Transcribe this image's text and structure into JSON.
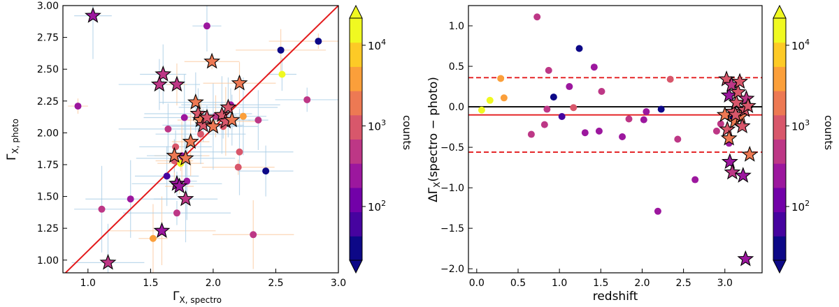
{
  "chart_data": [
    {
      "type": "scatter",
      "title": "",
      "xlabel_main": "Γ",
      "xlabel_sub": "X, spectro",
      "ylabel_main": "Γ",
      "ylabel_sub": "X, photo",
      "xlim": [
        0.8,
        3.0
      ],
      "ylim": [
        0.9,
        3.0
      ],
      "xticks": [
        1.0,
        1.5,
        2.0,
        2.5,
        3.0
      ],
      "xtick_labels": [
        "1.0",
        "1.5",
        "2.0",
        "2.5",
        "3.0"
      ],
      "yticks": [
        1.0,
        1.25,
        1.5,
        1.75,
        2.0,
        2.25,
        2.5,
        2.75,
        3.0
      ],
      "ytick_labels": [
        "1.00",
        "1.25",
        "1.50",
        "1.75",
        "2.00",
        "2.25",
        "2.50",
        "2.75",
        "3.00"
      ],
      "one_to_one_line": {
        "from": [
          0.8,
          0.88
        ],
        "to": [
          3.0,
          3.0
        ],
        "color": "#e31a1c"
      },
      "errorbars_note": "light blue and light orange error bars on each point",
      "circles": [
        {
          "x": 0.92,
          "y": 2.21,
          "c": 0.4
        },
        {
          "x": 1.11,
          "y": 1.4,
          "c": 0.42
        },
        {
          "x": 1.34,
          "y": 1.48,
          "c": 0.4
        },
        {
          "x": 1.52,
          "y": 1.17,
          "c": 0.75
        },
        {
          "x": 1.63,
          "y": 1.66,
          "c": 0.12
        },
        {
          "x": 1.64,
          "y": 2.03,
          "c": 0.48
        },
        {
          "x": 1.69,
          "y": 1.78,
          "c": 0.58
        },
        {
          "x": 1.7,
          "y": 1.89,
          "c": 0.55
        },
        {
          "x": 1.71,
          "y": 1.37,
          "c": 0.45
        },
        {
          "x": 1.74,
          "y": 1.76,
          "c": 1.0
        },
        {
          "x": 1.77,
          "y": 2.12,
          "c": 0.4
        },
        {
          "x": 1.79,
          "y": 1.62,
          "c": 0.4
        },
        {
          "x": 1.75,
          "y": 1.82,
          "c": 0.38
        },
        {
          "x": 1.9,
          "y": 1.99,
          "c": 0.55
        },
        {
          "x": 1.95,
          "y": 2.84,
          "c": 0.35
        },
        {
          "x": 2.02,
          "y": 2.13,
          "c": 0.5
        },
        {
          "x": 2.14,
          "y": 2.22,
          "c": 0.38
        },
        {
          "x": 2.08,
          "y": 2.05,
          "c": 0.55
        },
        {
          "x": 2.2,
          "y": 1.73,
          "c": 0.52
        },
        {
          "x": 2.21,
          "y": 1.85,
          "c": 0.6
        },
        {
          "x": 2.24,
          "y": 2.13,
          "c": 0.78
        },
        {
          "x": 2.32,
          "y": 1.2,
          "c": 0.48
        },
        {
          "x": 2.36,
          "y": 2.1,
          "c": 0.42
        },
        {
          "x": 2.42,
          "y": 1.7,
          "c": 0.1
        },
        {
          "x": 2.54,
          "y": 2.65,
          "c": 0.08
        },
        {
          "x": 2.55,
          "y": 2.46,
          "c": 0.98
        },
        {
          "x": 2.75,
          "y": 2.26,
          "c": 0.45
        },
        {
          "x": 2.84,
          "y": 2.72,
          "c": 0.1
        }
      ],
      "stars": [
        {
          "x": 1.04,
          "y": 2.92,
          "c": 0.4
        },
        {
          "x": 1.16,
          "y": 0.98,
          "c": 0.48
        },
        {
          "x": 1.59,
          "y": 1.23,
          "c": 0.38
        },
        {
          "x": 1.6,
          "y": 2.46,
          "c": 0.48
        },
        {
          "x": 1.57,
          "y": 2.38,
          "c": 0.48
        },
        {
          "x": 1.71,
          "y": 2.38,
          "c": 0.48
        },
        {
          "x": 1.69,
          "y": 1.82,
          "c": 0.62
        },
        {
          "x": 1.71,
          "y": 1.6,
          "c": 0.38
        },
        {
          "x": 1.73,
          "y": 1.58,
          "c": 0.4
        },
        {
          "x": 1.78,
          "y": 1.48,
          "c": 0.45
        },
        {
          "x": 1.78,
          "y": 1.8,
          "c": 0.65
        },
        {
          "x": 1.82,
          "y": 1.93,
          "c": 0.65
        },
        {
          "x": 1.86,
          "y": 2.24,
          "c": 0.7
        },
        {
          "x": 1.88,
          "y": 2.15,
          "c": 0.6
        },
        {
          "x": 1.9,
          "y": 2.1,
          "c": 0.62
        },
        {
          "x": 1.92,
          "y": 2.06,
          "c": 0.55
        },
        {
          "x": 1.95,
          "y": 2.12,
          "c": 0.6
        },
        {
          "x": 1.99,
          "y": 2.56,
          "c": 0.65
        },
        {
          "x": 2.0,
          "y": 2.05,
          "c": 0.62
        },
        {
          "x": 2.07,
          "y": 2.14,
          "c": 0.58
        },
        {
          "x": 2.1,
          "y": 2.09,
          "c": 0.55
        },
        {
          "x": 2.12,
          "y": 2.2,
          "c": 0.6
        },
        {
          "x": 2.15,
          "y": 2.1,
          "c": 0.62
        },
        {
          "x": 2.21,
          "y": 2.39,
          "c": 0.65
        }
      ],
      "colorbar": {
        "label": "counts",
        "ticks": [
          {
            "main": "10",
            "exp": "2",
            "frac": 0.222
          },
          {
            "main": "10",
            "exp": "3",
            "frac": 0.555
          },
          {
            "main": "10",
            "exp": "4",
            "frac": 0.888
          }
        ]
      }
    },
    {
      "type": "scatter",
      "title": "",
      "xlabel": "redshift",
      "ylabel_main": "ΔΓ",
      "ylabel_sub": "X",
      "ylabel_rest": "(spectro − photo)",
      "xlim": [
        -0.1,
        3.45
      ],
      "ylim": [
        -2.05,
        1.25
      ],
      "xticks": [
        0.0,
        0.5,
        1.0,
        1.5,
        2.0,
        2.5,
        3.0
      ],
      "xtick_labels": [
        "0.0",
        "0.5",
        "1.0",
        "1.5",
        "2.0",
        "2.5",
        "3.0"
      ],
      "yticks": [
        -2.0,
        -1.5,
        -1.0,
        -0.5,
        0.0,
        0.5,
        1.0
      ],
      "ytick_labels": [
        "−2.0",
        "−1.5",
        "−1.0",
        "−0.5",
        "0.0",
        "0.5",
        "1.0"
      ],
      "hlines": [
        {
          "y": 0.0,
          "color": "#000000",
          "style": "solid"
        },
        {
          "y": -0.1,
          "color": "#e31a1c",
          "style": "solid"
        },
        {
          "y": 0.36,
          "color": "#e31a1c",
          "style": "dashed"
        },
        {
          "y": -0.56,
          "color": "#e31a1c",
          "style": "dashed"
        }
      ],
      "circles": [
        {
          "x": 0.06,
          "y": -0.04,
          "c": 0.98
        },
        {
          "x": 0.16,
          "y": 0.08,
          "c": 1.0
        },
        {
          "x": 0.29,
          "y": 0.35,
          "c": 0.78
        },
        {
          "x": 0.33,
          "y": 0.11,
          "c": 0.8
        },
        {
          "x": 0.66,
          "y": -0.34,
          "c": 0.45
        },
        {
          "x": 0.73,
          "y": 1.11,
          "c": 0.45
        },
        {
          "x": 0.82,
          "y": -0.22,
          "c": 0.48
        },
        {
          "x": 0.85,
          "y": -0.03,
          "c": 0.45
        },
        {
          "x": 0.87,
          "y": 0.45,
          "c": 0.5
        },
        {
          "x": 0.93,
          "y": 0.12,
          "c": 0.1
        },
        {
          "x": 1.03,
          "y": -0.12,
          "c": 0.12
        },
        {
          "x": 1.12,
          "y": 0.25,
          "c": 0.4
        },
        {
          "x": 1.17,
          "y": -0.01,
          "c": 0.55
        },
        {
          "x": 1.24,
          "y": 0.72,
          "c": 0.1
        },
        {
          "x": 1.31,
          "y": -0.32,
          "c": 0.4
        },
        {
          "x": 1.42,
          "y": 0.49,
          "c": 0.4
        },
        {
          "x": 1.48,
          "y": -0.3,
          "c": 0.4
        },
        {
          "x": 1.51,
          "y": 0.19,
          "c": 0.48
        },
        {
          "x": 1.76,
          "y": -0.37,
          "c": 0.4
        },
        {
          "x": 1.84,
          "y": -0.15,
          "c": 0.42
        },
        {
          "x": 2.02,
          "y": -0.16,
          "c": 0.4
        },
        {
          "x": 2.05,
          "y": -0.06,
          "c": 0.38
        },
        {
          "x": 2.19,
          "y": -1.29,
          "c": 0.4
        },
        {
          "x": 2.23,
          "y": -0.03,
          "c": 0.1
        },
        {
          "x": 2.34,
          "y": 0.34,
          "c": 0.55
        },
        {
          "x": 2.43,
          "y": -0.4,
          "c": 0.42
        },
        {
          "x": 2.64,
          "y": -0.9,
          "c": 0.4
        },
        {
          "x": 2.9,
          "y": -0.3,
          "c": 0.5
        },
        {
          "x": 2.95,
          "y": -0.21,
          "c": 0.5
        },
        {
          "x": 3.05,
          "y": -0.45,
          "c": 0.4
        },
        {
          "x": 3.1,
          "y": -0.15,
          "c": 0.1
        }
      ],
      "stars": [
        {
          "x": 3.02,
          "y": 0.34,
          "c": 0.6
        },
        {
          "x": 3.05,
          "y": 0.14,
          "c": 0.4
        },
        {
          "x": 3.08,
          "y": 0.27,
          "c": 0.45
        },
        {
          "x": 3.0,
          "y": -0.1,
          "c": 0.62
        },
        {
          "x": 3.03,
          "y": -0.28,
          "c": 0.55
        },
        {
          "x": 3.05,
          "y": -0.39,
          "c": 0.65
        },
        {
          "x": 3.06,
          "y": -0.68,
          "c": 0.4
        },
        {
          "x": 3.09,
          "y": -0.81,
          "c": 0.45
        },
        {
          "x": 3.1,
          "y": -0.06,
          "c": 0.6
        },
        {
          "x": 3.12,
          "y": -0.18,
          "c": 0.62
        },
        {
          "x": 3.14,
          "y": 0.05,
          "c": 0.58
        },
        {
          "x": 3.16,
          "y": 0.18,
          "c": 0.55
        },
        {
          "x": 3.18,
          "y": 0.31,
          "c": 0.6
        },
        {
          "x": 3.19,
          "y": -0.12,
          "c": 0.62
        },
        {
          "x": 3.21,
          "y": -0.24,
          "c": 0.6
        },
        {
          "x": 3.22,
          "y": -0.85,
          "c": 0.4
        },
        {
          "x": 3.24,
          "y": -0.04,
          "c": 0.58
        },
        {
          "x": 3.26,
          "y": 0.1,
          "c": 0.45
        },
        {
          "x": 3.28,
          "y": 0.01,
          "c": 0.58
        },
        {
          "x": 3.3,
          "y": -0.59,
          "c": 0.65
        },
        {
          "x": 3.25,
          "y": -1.88,
          "c": 0.4
        },
        {
          "x": 3.13,
          "y": -0.1,
          "c": 0.6
        }
      ],
      "colorbar": {
        "label": "counts",
        "ticks": [
          {
            "main": "10",
            "exp": "2",
            "frac": 0.222
          },
          {
            "main": "10",
            "exp": "3",
            "frac": 0.555
          },
          {
            "main": "10",
            "exp": "4",
            "frac": 0.888
          }
        ]
      }
    }
  ]
}
